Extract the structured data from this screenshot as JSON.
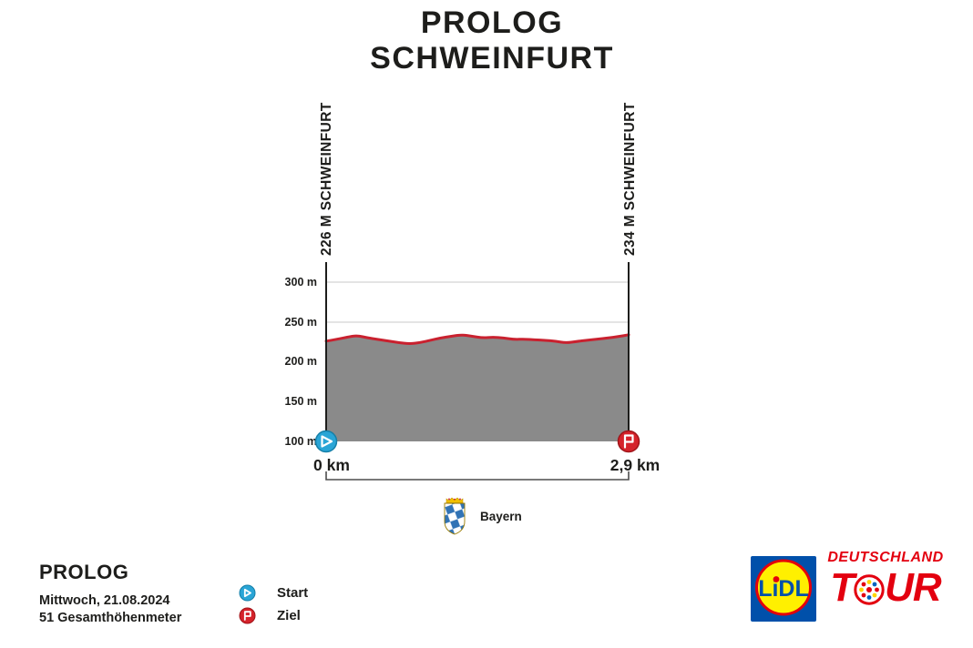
{
  "title": {
    "line1": "PROLOG",
    "line2": "SCHWEINFURT"
  },
  "chart_data": {
    "type": "area",
    "title": "PROLOG SCHWEINFURT elevation profile",
    "xlabel": "distance (km)",
    "ylabel": "elevation (m)",
    "xlim": [
      0,
      2.9
    ],
    "ylim": [
      100,
      325
    ],
    "grid": "horizontal gridlines at 250 m and 300 m",
    "x_km": [
      0.0,
      0.1,
      0.2,
      0.3,
      0.4,
      0.5,
      0.6,
      0.7,
      0.8,
      0.9,
      1.0,
      1.1,
      1.2,
      1.3,
      1.4,
      1.5,
      1.6,
      1.7,
      1.8,
      1.9,
      2.0,
      2.1,
      2.2,
      2.3,
      2.4,
      2.5,
      2.6,
      2.7,
      2.8,
      2.9
    ],
    "elevation_m": [
      226,
      228,
      231,
      233,
      230,
      228,
      226,
      224,
      222.5,
      224,
      227,
      230,
      232,
      234,
      232,
      230,
      231,
      230,
      228,
      228.5,
      227.5,
      227,
      226,
      223.5,
      225.5,
      227,
      228.5,
      230,
      231.5,
      234
    ],
    "y_ticks": [
      "300 m",
      "250 m",
      "200 m",
      "150 m",
      "100 m"
    ],
    "y_tick_values": [
      300,
      250,
      200,
      150,
      100
    ],
    "x_start_label": "0 km",
    "x_end_label": "2,9 km",
    "start_label": "226 M SCHWEINFURT",
    "end_label": "234 M SCHWEINFURT",
    "line_color": "#c9212f",
    "fill_color": "#8a8a8a",
    "start_marker_color": "#2aa5d6",
    "finish_marker_color": "#d5232b"
  },
  "region_badge": {
    "label": "Bayern"
  },
  "info": {
    "stage": "PROLOG",
    "date": "Mittwoch, 21.08.2024",
    "total_climb": "51 Gesamthöhenmeter"
  },
  "legend": {
    "start": "Start",
    "finish": "Ziel"
  },
  "logos": {
    "lidl_text": "LiDL",
    "tour_line1": "DEUTSCHLAND",
    "tour_line2_pre": "T",
    "tour_line2_post": "UR",
    "lidl_blue": "#0050aa",
    "lidl_yellow": "#fff000",
    "tour_red": "#e3000f"
  }
}
